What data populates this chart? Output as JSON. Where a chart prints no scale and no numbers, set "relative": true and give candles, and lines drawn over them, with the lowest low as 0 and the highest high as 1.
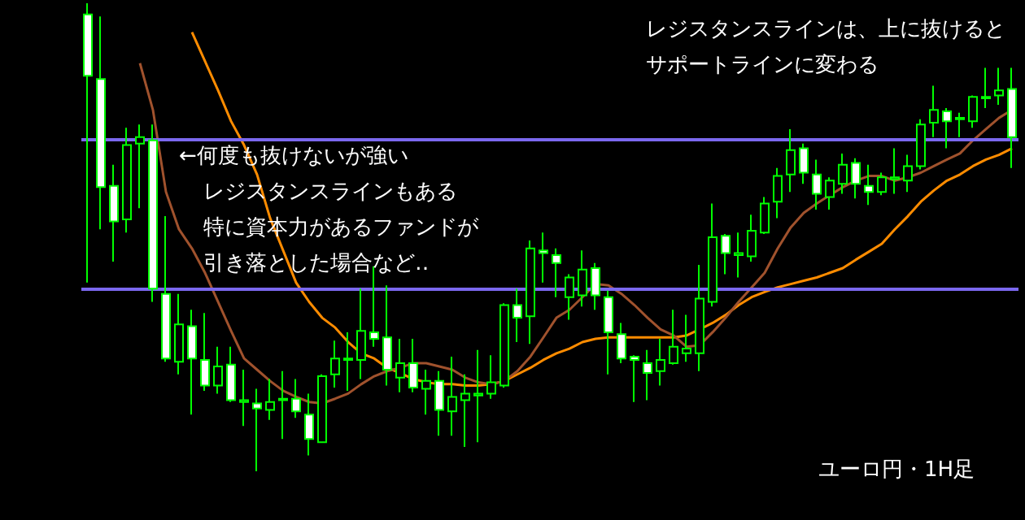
{
  "chart_data": {
    "type": "candlestick",
    "relative": true,
    "grid": false,
    "line_style": "solid",
    "categories": [
      null,
      null,
      null,
      null,
      null,
      null,
      null,
      null,
      null,
      null,
      null,
      null,
      null,
      null,
      null,
      null,
      null,
      null,
      null,
      null,
      null,
      null,
      null,
      null,
      null,
      null,
      null,
      null,
      null,
      null,
      null,
      null,
      null,
      null,
      null,
      null,
      null,
      null,
      null,
      null,
      null,
      null,
      null,
      null,
      null,
      null,
      null,
      null,
      null,
      null,
      null,
      null,
      null,
      null,
      null,
      null,
      null,
      null,
      null,
      null,
      null,
      null,
      null,
      null,
      null,
      null,
      null,
      null,
      null,
      null,
      null,
      null
    ],
    "ohlc": [
      [
        0.976,
        1,
        0.403,
        0.845
      ],
      [
        0.838,
        0.972,
        0.517,
        0.607
      ],
      [
        0.61,
        0.655,
        0.448,
        0.534
      ],
      [
        0.538,
        0.734,
        0.51,
        0.697
      ],
      [
        0.7,
        0.741,
        0.562,
        0.714
      ],
      [
        0.707,
        0.741,
        0.362,
        0.39
      ],
      [
        0.379,
        0.545,
        0.234,
        0.241
      ],
      [
        0.234,
        0.379,
        0.207,
        0.314
      ],
      [
        0.31,
        0.345,
        0.121,
        0.241
      ],
      [
        0.238,
        0.338,
        0.172,
        0.183
      ],
      [
        0.183,
        0.266,
        0.166,
        0.224
      ],
      [
        0.228,
        0.266,
        0.148,
        0.152
      ],
      [
        0.148,
        0.217,
        0.097,
        0.152
      ],
      [
        0.145,
        0.176,
        0,
        0.134
      ],
      [
        0.131,
        0.197,
        0.11,
        0.148
      ],
      [
        0.152,
        0.214,
        0.069,
        0.155
      ],
      [
        0.155,
        0.197,
        0.114,
        0.128
      ],
      [
        0.121,
        0.166,
        0.034,
        0.069
      ],
      [
        0.062,
        0.207,
        0.062,
        0.203
      ],
      [
        0.207,
        0.279,
        0.179,
        0.241
      ],
      [
        0.238,
        0.297,
        0.172,
        0.241
      ],
      [
        0.238,
        0.39,
        0.197,
        0.3
      ],
      [
        0.297,
        0.438,
        0.266,
        0.283
      ],
      [
        0.286,
        0.397,
        0.183,
        0.217
      ],
      [
        0.2,
        0.283,
        0.169,
        0.231
      ],
      [
        0.231,
        0.283,
        0.169,
        0.179
      ],
      [
        0.176,
        0.217,
        0.121,
        0.193
      ],
      [
        0.193,
        0.214,
        0.076,
        0.131
      ],
      [
        0.128,
        0.245,
        0.076,
        0.159
      ],
      [
        0.152,
        0.207,
        0.052,
        0.166
      ],
      [
        0.162,
        0.259,
        0.062,
        0.166
      ],
      [
        0.166,
        0.248,
        0.155,
        0.19
      ],
      [
        0.183,
        0.359,
        0.179,
        0.355
      ],
      [
        0.355,
        0.39,
        0.276,
        0.328
      ],
      [
        0.331,
        0.493,
        0.272,
        0.476
      ],
      [
        0.472,
        0.51,
        0.403,
        0.466
      ],
      [
        0.462,
        0.476,
        0.372,
        0.445
      ],
      [
        0.372,
        0.421,
        0.324,
        0.414
      ],
      [
        0.376,
        0.472,
        0.352,
        0.431
      ],
      [
        0.434,
        0.445,
        0.345,
        0.376
      ],
      [
        0.372,
        0.386,
        0.207,
        0.297
      ],
      [
        0.293,
        0.317,
        0.231,
        0.241
      ],
      [
        0.245,
        0.248,
        0.148,
        0.238
      ],
      [
        0.231,
        0.259,
        0.152,
        0.21
      ],
      [
        0.214,
        0.283,
        0.183,
        0.238
      ],
      [
        0.231,
        0.345,
        0.228,
        0.266
      ],
      [
        0.252,
        0.334,
        0.234,
        0.262
      ],
      [
        0.252,
        0.441,
        0.214,
        0.369
      ],
      [
        0.362,
        0.572,
        0.352,
        0.5
      ],
      [
        0.503,
        0.507,
        0.421,
        0.466
      ],
      [
        0.462,
        0.51,
        0.414,
        0.466
      ],
      [
        0.459,
        0.548,
        0.448,
        0.514
      ],
      [
        0.51,
        0.586,
        0.507,
        0.572
      ],
      [
        0.576,
        0.648,
        0.541,
        0.631
      ],
      [
        0.634,
        0.731,
        0.597,
        0.686
      ],
      [
        0.69,
        0.7,
        0.614,
        0.638
      ],
      [
        0.634,
        0.666,
        0.559,
        0.593
      ],
      [
        0.586,
        0.628,
        0.559,
        0.621
      ],
      [
        0.614,
        0.679,
        0.593,
        0.655
      ],
      [
        0.659,
        0.669,
        0.583,
        0.614
      ],
      [
        0.61,
        0.655,
        0.569,
        0.597
      ],
      [
        0.597,
        0.638,
        0.59,
        0.628
      ],
      [
        0.624,
        0.69,
        0.593,
        0.628
      ],
      [
        0.621,
        0.676,
        0.597,
        0.652
      ],
      [
        0.652,
        0.752,
        0.645,
        0.741
      ],
      [
        0.745,
        0.824,
        0.714,
        0.772
      ],
      [
        0.769,
        0.776,
        0.69,
        0.748
      ],
      [
        0.752,
        0.766,
        0.714,
        0.755
      ],
      [
        0.748,
        0.803,
        0.734,
        0.8
      ],
      [
        0.797,
        0.862,
        0.776,
        0.8
      ],
      [
        0.803,
        0.862,
        0.783,
        0.814
      ],
      [
        0.817,
        0.862,
        0.648,
        0.714
      ]
    ],
    "series": [
      {
        "type": "line",
        "color": "#ff8c00",
        "values": [
          null,
          null,
          null,
          null,
          null,
          null,
          null,
          null,
          0.938,
          0.876,
          0.814,
          0.748,
          0.697,
          0.634,
          0.541,
          0.472,
          0.403,
          0.362,
          0.328,
          0.307,
          0.276,
          0.252,
          0.241,
          0.221,
          0.21,
          0.197,
          0.19,
          0.186,
          0.186,
          0.183,
          0.183,
          0.186,
          0.193,
          0.207,
          0.221,
          0.238,
          0.252,
          0.262,
          0.276,
          0.283,
          0.286,
          0.286,
          0.286,
          0.286,
          0.286,
          0.286,
          0.29,
          0.303,
          0.317,
          0.334,
          0.355,
          0.372,
          0.383,
          0.393,
          0.4,
          0.407,
          0.414,
          0.424,
          0.434,
          0.452,
          0.469,
          0.486,
          0.517,
          0.545,
          0.576,
          0.6,
          0.621,
          0.634,
          0.652,
          0.666,
          0.676,
          0.69
        ]
      },
      {
        "type": "line",
        "color": "#a0522d",
        "values": [
          null,
          null,
          null,
          null,
          0.872,
          0.772,
          0.597,
          0.517,
          0.476,
          0.424,
          0.362,
          0.3,
          0.241,
          0.217,
          0.193,
          0.172,
          0.159,
          0.148,
          0.145,
          0.155,
          0.166,
          0.186,
          0.203,
          0.214,
          0.221,
          0.231,
          0.231,
          0.224,
          0.217,
          0.2,
          0.19,
          0.186,
          0.193,
          0.214,
          0.245,
          0.286,
          0.328,
          0.345,
          0.372,
          0.4,
          0.397,
          0.379,
          0.355,
          0.328,
          0.303,
          0.29,
          0.266,
          0.269,
          0.297,
          0.328,
          0.362,
          0.393,
          0.424,
          0.476,
          0.521,
          0.552,
          0.572,
          0.59,
          0.607,
          0.621,
          0.631,
          0.631,
          0.621,
          0.628,
          0.638,
          0.652,
          0.666,
          0.679,
          0.707,
          0.731,
          0.755,
          0.772
        ]
      }
    ],
    "ref_lines": [
      {
        "axis": "y",
        "value": 0.707,
        "color": "#7b68ee"
      },
      {
        "axis": "y",
        "value": 0.386,
        "color": "#7b68ee"
      }
    ],
    "annotations": [
      "レジスタンスラインは、上に抜けると",
      "サポートラインに変わる",
      "←何度も抜けないが強い",
      "レジスタンスラインもある",
      "特に資本力があるファンドが",
      "引き落とした場合など‥",
      "ユーロ円・1H足"
    ]
  }
}
